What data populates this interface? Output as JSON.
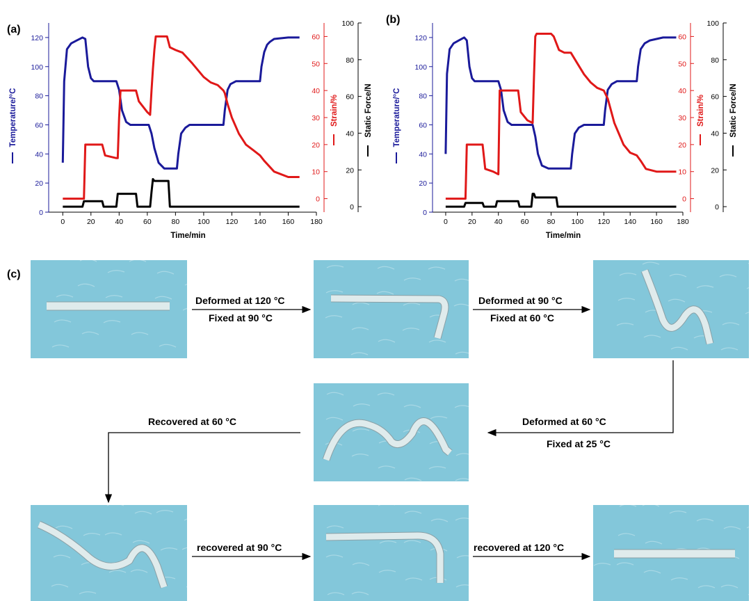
{
  "labels": {
    "a": "(a)",
    "b": "(b)",
    "c": "(c)"
  },
  "colors": {
    "temperature": "#1a1a9a",
    "strain": "#e01818",
    "force": "#000000",
    "photo_bg": "#83c7da",
    "strip": "#e6f1f2"
  },
  "chart_data": [
    {
      "type": "line",
      "xlabel": "Time/min",
      "xlim": [
        -10,
        180
      ],
      "xticks": [
        0,
        20,
        40,
        60,
        80,
        100,
        120,
        140,
        160,
        180
      ],
      "axes": {
        "temperature": {
          "label": "Temperature/°C",
          "ylim": [
            0,
            130
          ],
          "ticks": [
            0,
            20,
            40,
            60,
            80,
            100,
            120
          ]
        },
        "strain": {
          "label": "Strain/%",
          "ylim": [
            -5,
            65
          ],
          "ticks": [
            0,
            10,
            20,
            30,
            40,
            50,
            60
          ]
        },
        "force": {
          "label": "Static Force/N",
          "ylim": [
            -3,
            100
          ],
          "ticks": [
            0,
            20,
            40,
            60,
            80,
            100
          ]
        }
      },
      "series": [
        {
          "axis": "temperature",
          "color": "#1a1a9a",
          "x": [
            0,
            1,
            3,
            6,
            10,
            14,
            16,
            18,
            20,
            22,
            38,
            40,
            42,
            45,
            48,
            55,
            61,
            63,
            65,
            68,
            72,
            81,
            82,
            84,
            87,
            90,
            95,
            114,
            115,
            117,
            119,
            123,
            140,
            141,
            143,
            145,
            147,
            150,
            160,
            168
          ],
          "y": [
            34,
            90,
            112,
            116,
            118,
            120,
            119,
            100,
            92,
            90,
            90,
            84,
            70,
            62,
            60,
            60,
            60,
            54,
            44,
            34,
            30,
            30,
            40,
            54,
            58,
            60,
            60,
            60,
            70,
            84,
            88,
            90,
            90,
            100,
            110,
            115,
            117,
            119,
            120,
            120
          ]
        },
        {
          "axis": "strain",
          "color": "#e01818",
          "x": [
            0,
            15,
            16,
            28,
            30,
            38,
            39,
            40,
            41,
            52,
            54,
            60,
            62,
            63,
            64,
            65,
            66,
            68,
            74,
            76,
            80,
            85,
            92,
            100,
            105,
            110,
            114,
            115,
            117,
            120,
            125,
            130,
            135,
            140,
            143,
            150,
            160,
            168
          ],
          "y": [
            0,
            0,
            20,
            20,
            16,
            15,
            15,
            30,
            40,
            40,
            36,
            32,
            31,
            40,
            48,
            55,
            60,
            60,
            60,
            56,
            55,
            54,
            50,
            45,
            43,
            42,
            40,
            39,
            35,
            30,
            24,
            20,
            18,
            16,
            14,
            10,
            8,
            8
          ]
        },
        {
          "axis": "force",
          "color": "#000000",
          "x": [
            0,
            14,
            15,
            28,
            29,
            38,
            39,
            52,
            53,
            62,
            63,
            64,
            65,
            74,
            75,
            76,
            168
          ],
          "y": [
            0,
            0,
            3,
            3,
            0,
            0,
            7,
            7,
            0,
            0,
            8,
            15,
            14,
            14,
            14,
            0,
            0
          ]
        }
      ]
    },
    {
      "type": "line",
      "xlabel": "Time/min",
      "xlim": [
        -10,
        180
      ],
      "xticks": [
        0,
        20,
        40,
        60,
        80,
        100,
        120,
        140,
        160,
        180
      ],
      "axes": {
        "temperature": {
          "label": "Temperature/°C",
          "ylim": [
            0,
            130
          ],
          "ticks": [
            0,
            20,
            40,
            60,
            80,
            100,
            120
          ]
        },
        "strain": {
          "label": "Strain/%",
          "ylim": [
            -5,
            65
          ],
          "ticks": [
            0,
            10,
            20,
            30,
            40,
            50,
            60
          ]
        },
        "force": {
          "label": "Static Force/N",
          "ylim": [
            -3,
            100
          ],
          "ticks": [
            0,
            20,
            40,
            60,
            80,
            100
          ]
        }
      },
      "series": [
        {
          "axis": "temperature",
          "color": "#1a1a9a",
          "x": [
            0,
            1,
            3,
            6,
            10,
            14,
            16,
            18,
            20,
            22,
            40,
            42,
            44,
            47,
            50,
            55,
            66,
            68,
            70,
            73,
            78,
            95,
            96,
            98,
            101,
            105,
            120,
            121,
            123,
            126,
            130,
            145,
            146,
            148,
            151,
            155,
            165,
            175
          ],
          "y": [
            40,
            95,
            112,
            116,
            118,
            120,
            118,
            100,
            92,
            90,
            90,
            84,
            70,
            62,
            60,
            60,
            60,
            52,
            40,
            32,
            30,
            30,
            40,
            54,
            58,
            60,
            60,
            70,
            84,
            88,
            90,
            90,
            100,
            112,
            116,
            118,
            120,
            120
          ]
        },
        {
          "axis": "strain",
          "color": "#e01818",
          "x": [
            0,
            15,
            16,
            28,
            30,
            36,
            40,
            41,
            55,
            57,
            62,
            66,
            67,
            68,
            69,
            80,
            82,
            86,
            90,
            95,
            100,
            105,
            110,
            115,
            120,
            123,
            128,
            135,
            140,
            145,
            148,
            152,
            160,
            175
          ],
          "y": [
            0,
            0,
            20,
            20,
            11,
            10,
            9,
            40,
            40,
            32,
            29,
            28,
            45,
            60,
            61,
            61,
            60,
            55,
            54,
            54,
            50,
            46,
            43,
            41,
            40,
            37,
            28,
            20,
            17,
            16,
            14,
            11,
            10,
            10
          ]
        },
        {
          "axis": "force",
          "color": "#000000",
          "x": [
            0,
            14,
            15,
            28,
            29,
            38,
            39,
            55,
            56,
            64,
            65,
            66,
            67,
            68,
            69,
            84,
            85,
            175
          ],
          "y": [
            0,
            0,
            2,
            2,
            0,
            0,
            3,
            3,
            0,
            0,
            0,
            7,
            7,
            5,
            5,
            5,
            0,
            0
          ]
        }
      ]
    }
  ],
  "steps": {
    "s1_top": "Deformed at 120 °C",
    "s1_bottom": "Fixed at 90 °C",
    "s2_top": "Deformed at 90 °C",
    "s2_bottom": "Fixed at 60 °C",
    "s3_top": "Deformed at 60 °C",
    "s3_bottom": "Fixed at 25 °C",
    "s4": "Recovered at 60 °C",
    "s5": "recovered at 90 °C",
    "s6": "recovered at 120 °C"
  }
}
